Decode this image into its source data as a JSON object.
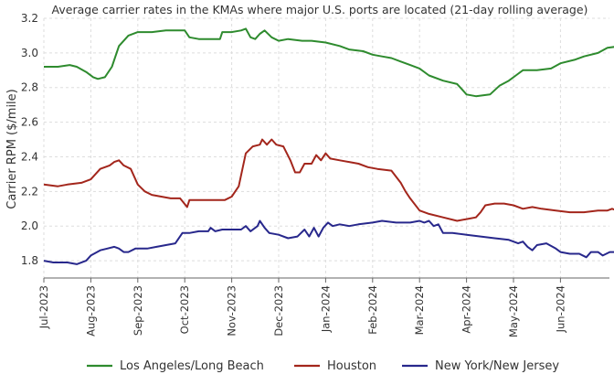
{
  "chart_data": {
    "type": "line",
    "title": "Average carrier rates in the KMAs where major U.S. ports are located (21-day rolling average)",
    "ylabel": "Carrier RPM ($/mile)",
    "xlabel": "",
    "ylim": [
      1.7,
      3.2
    ],
    "yticks": [
      "1.8",
      "2.0",
      "2.2",
      "2.4",
      "2.6",
      "2.8",
      "3.0",
      "3.2"
    ],
    "xticks": [
      "Jul-2023",
      "Aug-2023",
      "Sep-2023",
      "Oct-2023",
      "Nov-2023",
      "Dec-2023",
      "Jan-2024",
      "Feb-2024",
      "Mar-2024",
      "Apr-2024",
      "May-2024",
      "Jun-2024"
    ],
    "grid": true,
    "legend_position": "bottom",
    "series": [
      {
        "name": "Los Angeles/Long Beach",
        "color": "#2e8b2e",
        "points": [
          [
            0,
            2.92
          ],
          [
            0.3,
            2.92
          ],
          [
            0.55,
            2.93
          ],
          [
            0.7,
            2.92
          ],
          [
            0.9,
            2.89
          ],
          [
            1.05,
            2.86
          ],
          [
            1.15,
            2.85
          ],
          [
            1.3,
            2.86
          ],
          [
            1.45,
            2.92
          ],
          [
            1.6,
            3.04
          ],
          [
            1.8,
            3.1
          ],
          [
            2.0,
            3.12
          ],
          [
            2.3,
            3.12
          ],
          [
            2.6,
            3.13
          ],
          [
            3.0,
            3.13
          ],
          [
            3.1,
            3.09
          ],
          [
            3.3,
            3.08
          ],
          [
            3.6,
            3.08
          ],
          [
            3.75,
            3.08
          ],
          [
            3.8,
            3.12
          ],
          [
            4.0,
            3.12
          ],
          [
            4.2,
            3.13
          ],
          [
            4.3,
            3.14
          ],
          [
            4.4,
            3.09
          ],
          [
            4.5,
            3.08
          ],
          [
            4.6,
            3.11
          ],
          [
            4.7,
            3.13
          ],
          [
            4.85,
            3.09
          ],
          [
            5.0,
            3.07
          ],
          [
            5.2,
            3.08
          ],
          [
            5.5,
            3.07
          ],
          [
            5.7,
            3.07
          ],
          [
            6.0,
            3.06
          ],
          [
            6.3,
            3.04
          ],
          [
            6.5,
            3.02
          ],
          [
            6.8,
            3.01
          ],
          [
            7.0,
            2.99
          ],
          [
            7.2,
            2.98
          ],
          [
            7.4,
            2.97
          ],
          [
            7.6,
            2.95
          ],
          [
            7.8,
            2.93
          ],
          [
            8.0,
            2.91
          ],
          [
            8.2,
            2.87
          ],
          [
            8.5,
            2.84
          ],
          [
            8.8,
            2.82
          ],
          [
            8.9,
            2.79
          ],
          [
            9.0,
            2.76
          ],
          [
            9.2,
            2.75
          ],
          [
            9.5,
            2.76
          ],
          [
            9.7,
            2.81
          ],
          [
            9.9,
            2.84
          ],
          [
            10.05,
            2.87
          ],
          [
            10.2,
            2.9
          ],
          [
            10.5,
            2.9
          ],
          [
            10.8,
            2.91
          ],
          [
            11.0,
            2.94
          ],
          [
            11.3,
            2.96
          ],
          [
            11.5,
            2.98
          ],
          [
            11.8,
            3.0
          ],
          [
            12.0,
            3.03
          ],
          [
            12.3,
            3.04
          ],
          [
            12.4,
            3.05
          ]
        ]
      },
      {
        "name": "Houston",
        "color": "#a3261c",
        "points": [
          [
            0,
            2.24
          ],
          [
            0.3,
            2.23
          ],
          [
            0.5,
            2.24
          ],
          [
            0.8,
            2.25
          ],
          [
            1.0,
            2.27
          ],
          [
            1.2,
            2.33
          ],
          [
            1.4,
            2.35
          ],
          [
            1.5,
            2.37
          ],
          [
            1.6,
            2.38
          ],
          [
            1.7,
            2.35
          ],
          [
            1.85,
            2.33
          ],
          [
            2.0,
            2.24
          ],
          [
            2.15,
            2.2
          ],
          [
            2.3,
            2.18
          ],
          [
            2.5,
            2.17
          ],
          [
            2.7,
            2.16
          ],
          [
            2.9,
            2.16
          ],
          [
            3.05,
            2.11
          ],
          [
            3.1,
            2.15
          ],
          [
            3.3,
            2.15
          ],
          [
            3.5,
            2.15
          ],
          [
            3.85,
            2.15
          ],
          [
            4.0,
            2.17
          ],
          [
            4.15,
            2.23
          ],
          [
            4.3,
            2.42
          ],
          [
            4.45,
            2.46
          ],
          [
            4.6,
            2.47
          ],
          [
            4.65,
            2.5
          ],
          [
            4.75,
            2.47
          ],
          [
            4.85,
            2.5
          ],
          [
            4.95,
            2.47
          ],
          [
            5.1,
            2.46
          ],
          [
            5.25,
            2.38
          ],
          [
            5.35,
            2.31
          ],
          [
            5.45,
            2.31
          ],
          [
            5.55,
            2.36
          ],
          [
            5.7,
            2.36
          ],
          [
            5.8,
            2.41
          ],
          [
            5.9,
            2.38
          ],
          [
            6.0,
            2.42
          ],
          [
            6.1,
            2.39
          ],
          [
            6.3,
            2.38
          ],
          [
            6.5,
            2.37
          ],
          [
            6.7,
            2.36
          ],
          [
            6.9,
            2.34
          ],
          [
            7.1,
            2.33
          ],
          [
            7.4,
            2.32
          ],
          [
            7.6,
            2.25
          ],
          [
            7.7,
            2.2
          ],
          [
            7.8,
            2.16
          ],
          [
            8.0,
            2.09
          ],
          [
            8.2,
            2.07
          ],
          [
            8.5,
            2.05
          ],
          [
            8.8,
            2.03
          ],
          [
            9.0,
            2.04
          ],
          [
            9.2,
            2.05
          ],
          [
            9.3,
            2.08
          ],
          [
            9.4,
            2.12
          ],
          [
            9.6,
            2.13
          ],
          [
            9.8,
            2.13
          ],
          [
            10.0,
            2.12
          ],
          [
            10.2,
            2.1
          ],
          [
            10.4,
            2.11
          ],
          [
            10.6,
            2.1
          ],
          [
            10.9,
            2.09
          ],
          [
            11.2,
            2.08
          ],
          [
            11.5,
            2.08
          ],
          [
            11.8,
            2.09
          ],
          [
            12.0,
            2.09
          ],
          [
            12.1,
            2.1
          ],
          [
            12.2,
            2.09
          ],
          [
            12.4,
            2.1
          ]
        ]
      },
      {
        "name": "New York/New Jersey",
        "color": "#28288c",
        "points": [
          [
            0,
            1.8
          ],
          [
            0.2,
            1.79
          ],
          [
            0.5,
            1.79
          ],
          [
            0.7,
            1.78
          ],
          [
            0.9,
            1.8
          ],
          [
            1.0,
            1.83
          ],
          [
            1.2,
            1.86
          ],
          [
            1.35,
            1.87
          ],
          [
            1.5,
            1.88
          ],
          [
            1.6,
            1.87
          ],
          [
            1.7,
            1.85
          ],
          [
            1.8,
            1.85
          ],
          [
            1.95,
            1.87
          ],
          [
            2.2,
            1.87
          ],
          [
            2.4,
            1.88
          ],
          [
            2.6,
            1.89
          ],
          [
            2.8,
            1.9
          ],
          [
            2.95,
            1.96
          ],
          [
            3.1,
            1.96
          ],
          [
            3.3,
            1.97
          ],
          [
            3.5,
            1.97
          ],
          [
            3.55,
            1.99
          ],
          [
            3.65,
            1.97
          ],
          [
            3.8,
            1.98
          ],
          [
            4.0,
            1.98
          ],
          [
            4.2,
            1.98
          ],
          [
            4.3,
            2.0
          ],
          [
            4.4,
            1.97
          ],
          [
            4.55,
            2.0
          ],
          [
            4.6,
            2.03
          ],
          [
            4.7,
            1.99
          ],
          [
            4.8,
            1.96
          ],
          [
            5.0,
            1.95
          ],
          [
            5.2,
            1.93
          ],
          [
            5.4,
            1.94
          ],
          [
            5.55,
            1.98
          ],
          [
            5.65,
            1.94
          ],
          [
            5.75,
            1.99
          ],
          [
            5.85,
            1.94
          ],
          [
            5.95,
            1.99
          ],
          [
            6.05,
            2.02
          ],
          [
            6.15,
            2.0
          ],
          [
            6.3,
            2.01
          ],
          [
            6.5,
            2.0
          ],
          [
            6.7,
            2.01
          ],
          [
            7.0,
            2.02
          ],
          [
            7.2,
            2.03
          ],
          [
            7.5,
            2.02
          ],
          [
            7.8,
            2.02
          ],
          [
            8.0,
            2.03
          ],
          [
            8.1,
            2.02
          ],
          [
            8.2,
            2.03
          ],
          [
            8.3,
            2.0
          ],
          [
            8.4,
            2.01
          ],
          [
            8.5,
            1.96
          ],
          [
            8.7,
            1.96
          ],
          [
            9.0,
            1.95
          ],
          [
            9.3,
            1.94
          ],
          [
            9.6,
            1.93
          ],
          [
            9.9,
            1.92
          ],
          [
            10.1,
            1.9
          ],
          [
            10.2,
            1.91
          ],
          [
            10.3,
            1.88
          ],
          [
            10.4,
            1.86
          ],
          [
            10.5,
            1.89
          ],
          [
            10.7,
            1.9
          ],
          [
            10.9,
            1.87
          ],
          [
            11.0,
            1.85
          ],
          [
            11.2,
            1.84
          ],
          [
            11.4,
            1.84
          ],
          [
            11.55,
            1.82
          ],
          [
            11.65,
            1.85
          ],
          [
            11.8,
            1.85
          ],
          [
            11.9,
            1.83
          ],
          [
            12.05,
            1.85
          ],
          [
            12.25,
            1.85
          ],
          [
            12.4,
            1.85
          ]
        ]
      }
    ]
  }
}
